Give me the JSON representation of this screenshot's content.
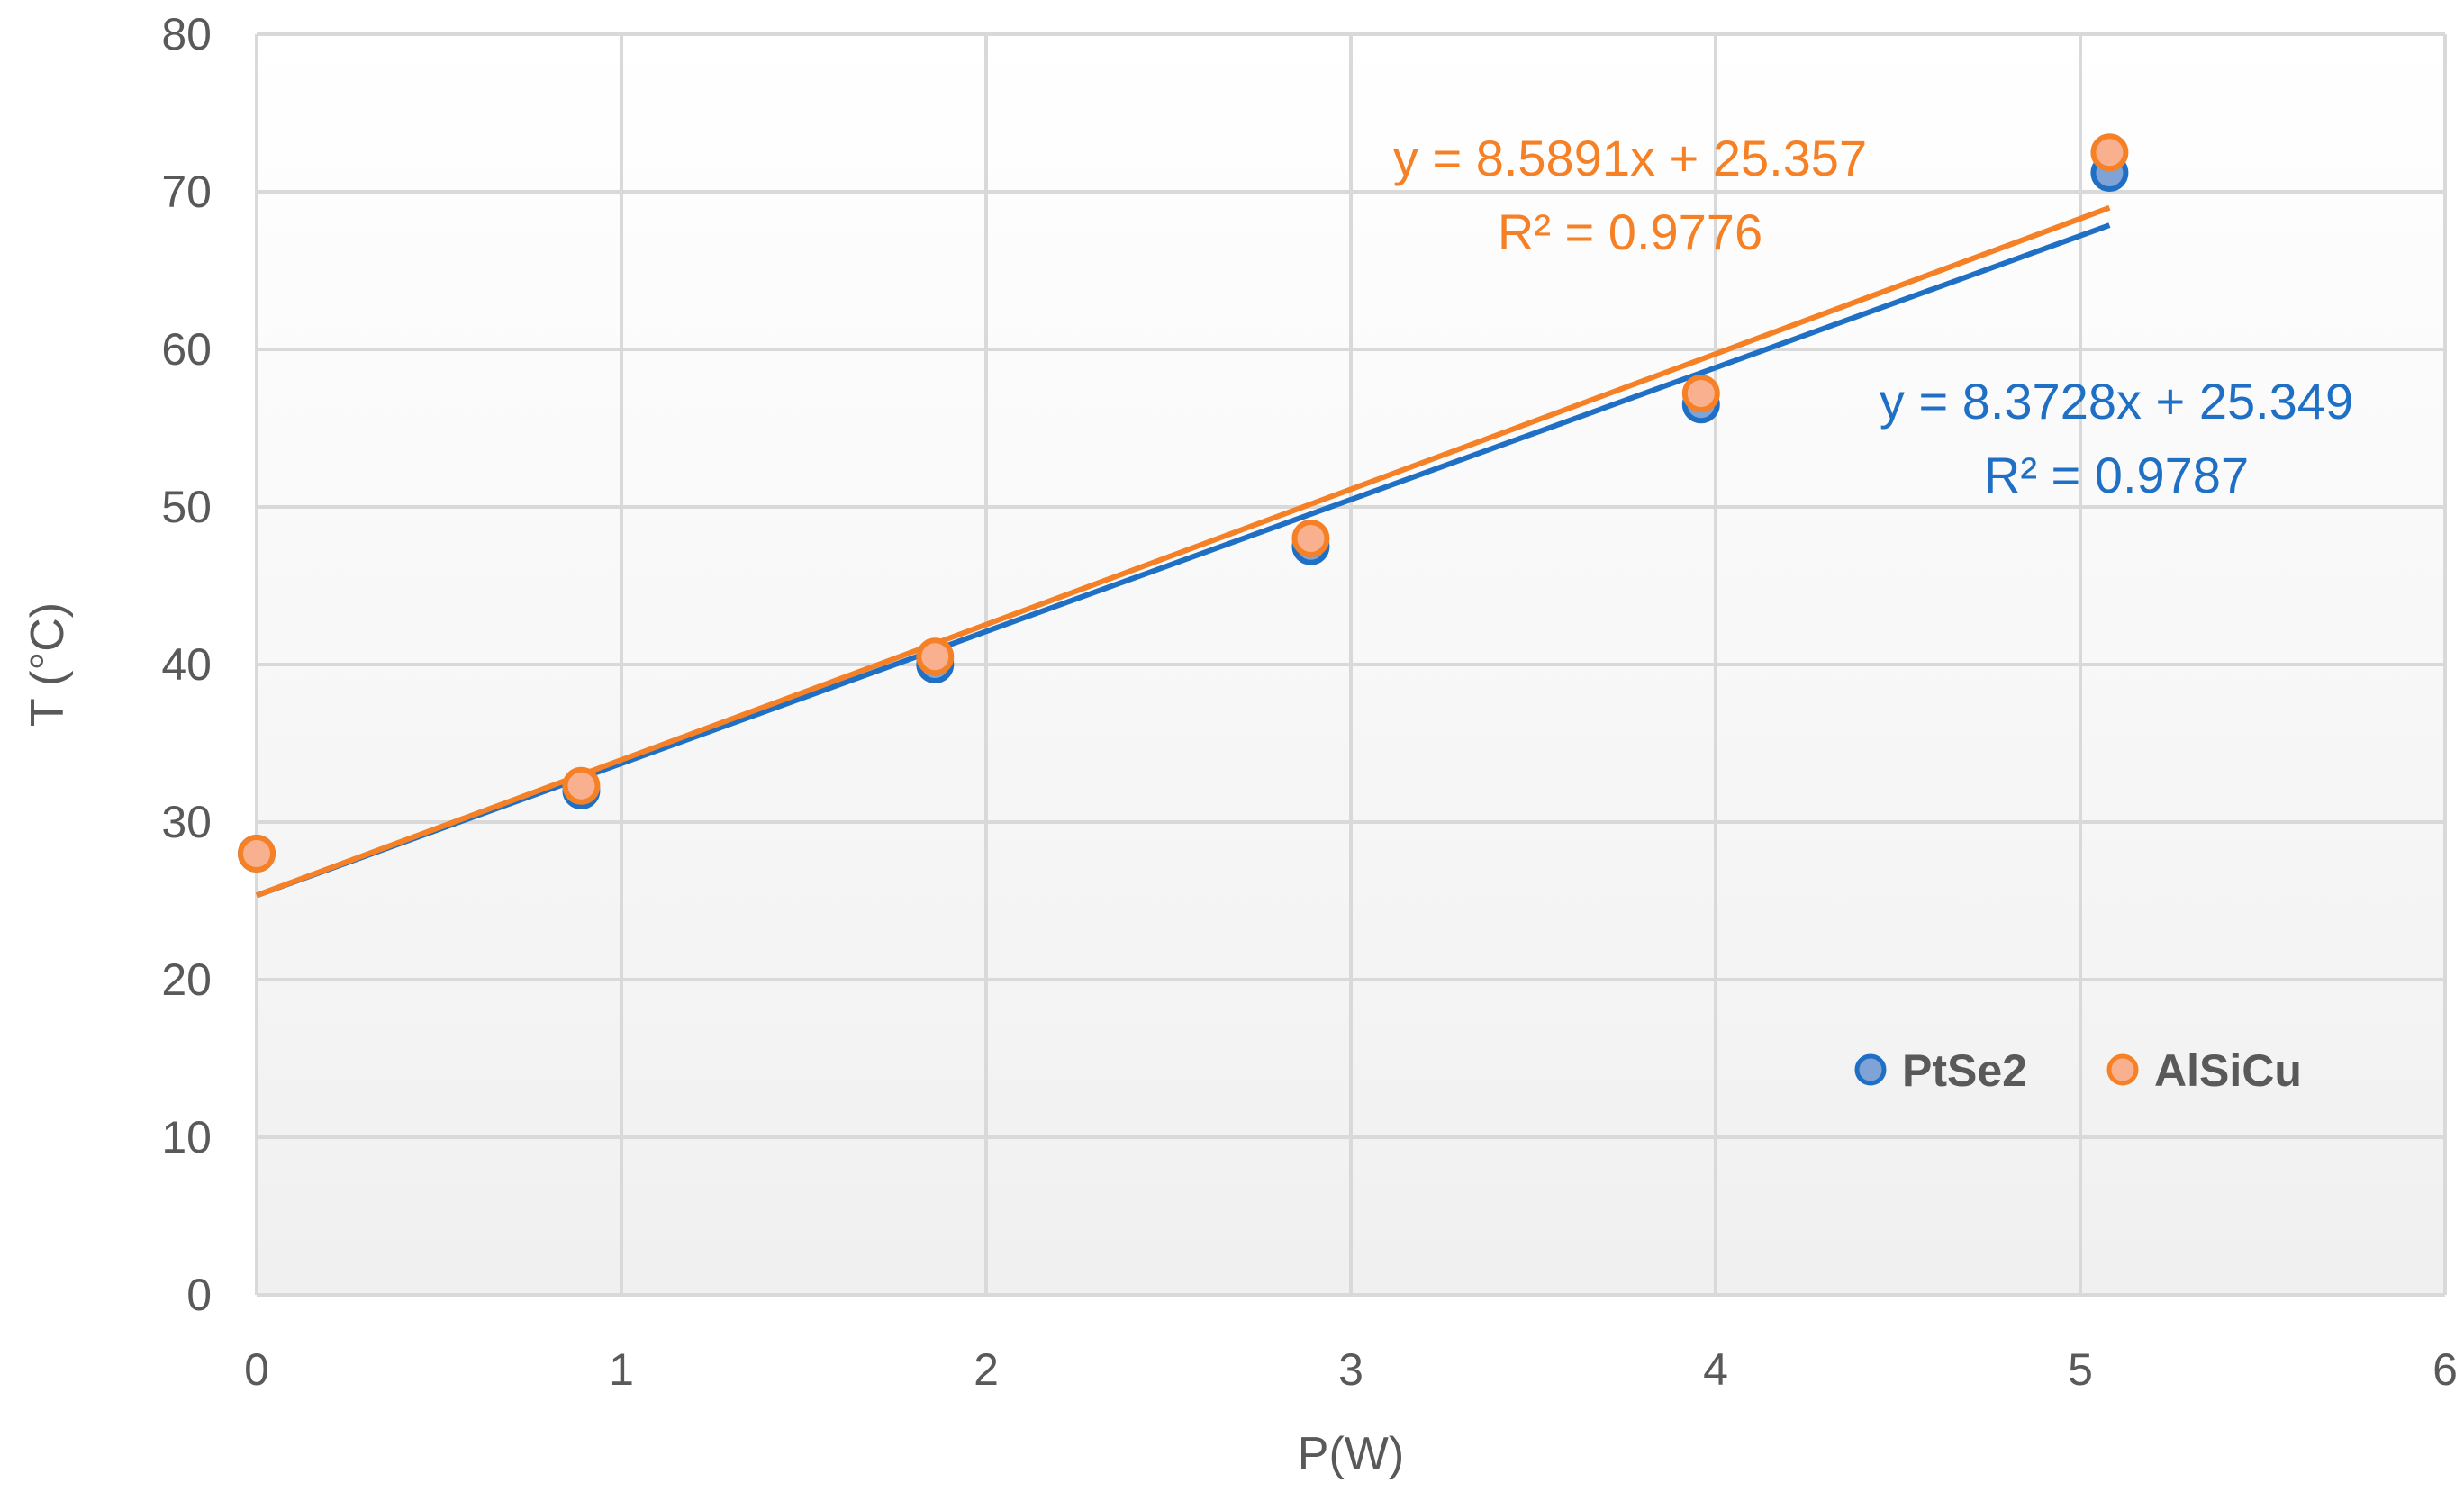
{
  "chart_data": {
    "type": "scatter",
    "title": "",
    "xlabel": "P(W)",
    "ylabel": "T (°C)",
    "xlim": [
      0,
      6
    ],
    "ylim": [
      0,
      80
    ],
    "xticks": [
      "0",
      "1",
      "2",
      "3",
      "4",
      "5",
      "6"
    ],
    "yticks": [
      "0",
      "10",
      "20",
      "30",
      "40",
      "50",
      "60",
      "70",
      "80"
    ],
    "grid": true,
    "legend_position": "bottom-right",
    "series": [
      {
        "name": "PtSe2",
        "color": "#1F6FC5",
        "fill": "#7FA3D6",
        "x": [
          0,
          0.89,
          1.86,
          2.89,
          3.96,
          5.08
        ],
        "y": [
          28.0,
          32.0,
          40.0,
          47.5,
          56.5,
          71.2
        ],
        "trendline": {
          "slope": 8.3728,
          "intercept": 25.349,
          "x_range": [
            0,
            5.08
          ],
          "equation": "y = 8.3728x + 25.349",
          "r2": "R² = 0.9787"
        }
      },
      {
        "name": "AlSiCu",
        "color": "#F58025",
        "fill": "#F9B08F",
        "x": [
          0,
          0.89,
          1.86,
          2.89,
          3.96,
          5.08
        ],
        "y": [
          28.0,
          32.3,
          40.5,
          48.0,
          57.2,
          72.5
        ],
        "trendline": {
          "slope": 8.5891,
          "intercept": 25.357,
          "x_range": [
            0,
            5.08
          ],
          "equation": "y = 8.5891x + 25.357",
          "r2": "R² = 0.9776"
        }
      }
    ]
  }
}
